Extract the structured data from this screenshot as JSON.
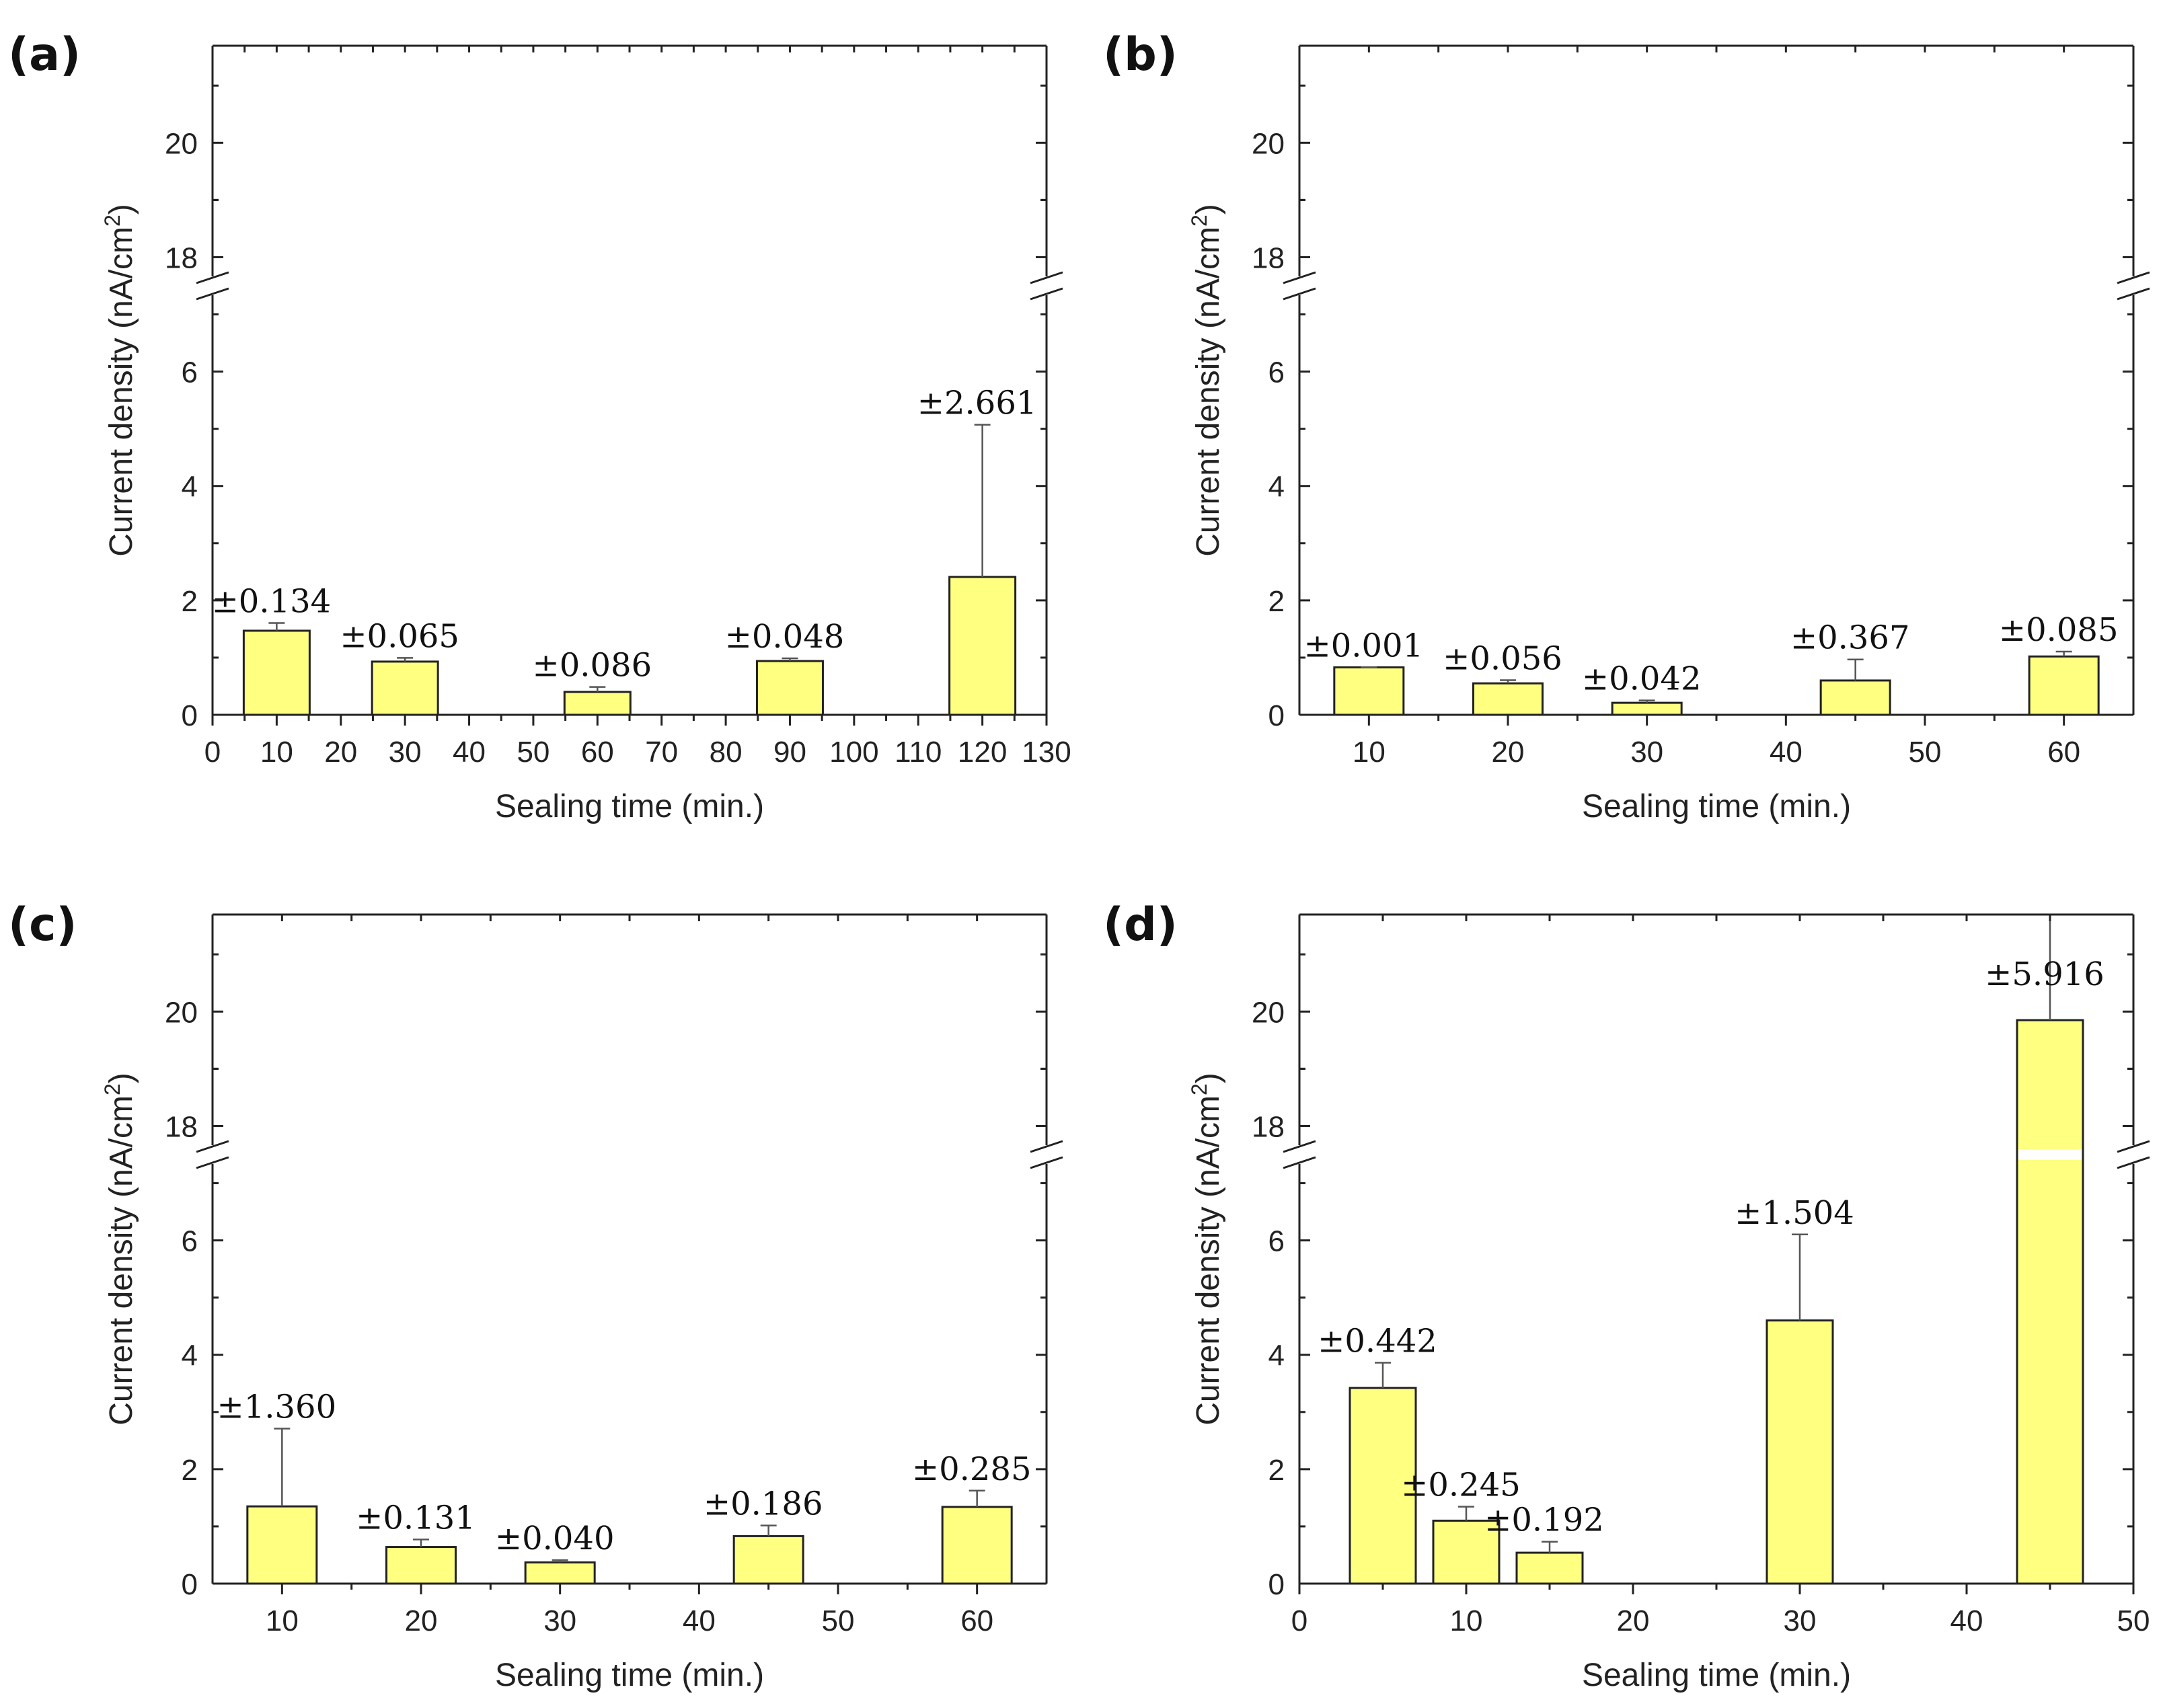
{
  "chart_data": [
    {
      "type": "bar",
      "panel": "(a)",
      "xlabel": "Sealing time (min.)",
      "ylabel": "Current density (nA/cm",
      "ylabel_sup": "2",
      "ylabel_end": ")",
      "xlim": [
        0,
        130
      ],
      "xticks": [
        "0",
        "10",
        "20",
        "30",
        "40",
        "50",
        "60",
        "70",
        "80",
        "90",
        "100",
        "110",
        "120",
        "130"
      ],
      "yticks_lower": [
        "0",
        "2",
        "4",
        "6"
      ],
      "yticks_upper": [
        "18",
        "20"
      ],
      "y_break": [
        7.5,
        17.5
      ],
      "x": [
        10,
        30,
        60,
        90,
        120
      ],
      "values": [
        1.47,
        0.93,
        0.4,
        0.94,
        2.41
      ],
      "errors": [
        0.134,
        0.065,
        0.086,
        0.048,
        2.661
      ],
      "error_labels": [
        "±0.134",
        "±0.065",
        "±0.086",
        "±0.048",
        "±2.661"
      ]
    },
    {
      "type": "bar",
      "panel": "(b)",
      "xlabel": "Sealing time (min.)",
      "ylabel": "Current density (nA/cm",
      "ylabel_sup": "2",
      "ylabel_end": ")",
      "xlim": [
        5,
        65
      ],
      "xticks": [
        "10",
        "20",
        "30",
        "40",
        "50",
        "60"
      ],
      "yticks_lower": [
        "0",
        "2",
        "4",
        "6"
      ],
      "yticks_upper": [
        "18",
        "20"
      ],
      "y_break": [
        7.5,
        17.5
      ],
      "x": [
        10,
        20,
        30,
        45,
        60
      ],
      "values": [
        0.83,
        0.55,
        0.21,
        0.6,
        1.02
      ],
      "errors": [
        0.001,
        0.056,
        0.042,
        0.367,
        0.085
      ],
      "error_labels": [
        "±0.001",
        "±0.056",
        "±0.042",
        "±0.367",
        "±0.085"
      ]
    },
    {
      "type": "bar",
      "panel": "(c)",
      "xlabel": "Sealing time (min.)",
      "ylabel": "Current density (nA/cm",
      "ylabel_sup": "2",
      "ylabel_end": ")",
      "xlim": [
        5,
        65
      ],
      "xticks": [
        "10",
        "20",
        "30",
        "40",
        "50",
        "60"
      ],
      "yticks_lower": [
        "0",
        "2",
        "4",
        "6"
      ],
      "yticks_upper": [
        "18",
        "20"
      ],
      "y_break": [
        7.5,
        17.5
      ],
      "x": [
        10,
        20,
        30,
        45,
        60
      ],
      "values": [
        1.35,
        0.64,
        0.37,
        0.83,
        1.34
      ],
      "errors": [
        1.36,
        0.131,
        0.04,
        0.186,
        0.285
      ],
      "error_labels": [
        "±1.360",
        "±0.131",
        "±0.040",
        "±0.186",
        "±0.285"
      ]
    },
    {
      "type": "bar",
      "panel": "(d)",
      "xlabel": "Sealing time (min.)",
      "ylabel": "Current density (nA/cm",
      "ylabel_sup": "2",
      "ylabel_end": ")",
      "xlim": [
        0,
        50
      ],
      "xticks": [
        "0",
        "10",
        "20",
        "30",
        "40",
        "50"
      ],
      "yticks_lower": [
        "0",
        "2",
        "4",
        "6"
      ],
      "yticks_upper": [
        "18",
        "20"
      ],
      "y_break": [
        7.5,
        17.5
      ],
      "x": [
        5,
        10,
        15,
        30,
        45
      ],
      "values": [
        3.42,
        1.1,
        0.54,
        4.6,
        19.85
      ],
      "errors": [
        0.442,
        0.245,
        0.192,
        1.504,
        5.916
      ],
      "error_labels": [
        "±0.442",
        "±0.245",
        "±0.192",
        "±1.504",
        "±5.916"
      ]
    }
  ]
}
